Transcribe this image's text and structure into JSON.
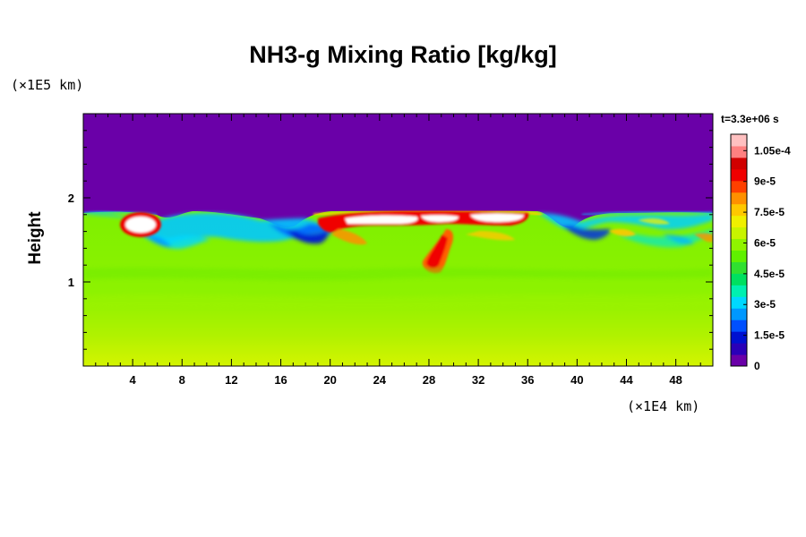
{
  "chart_data": {
    "type": "heatmap",
    "title": "NH3-g Mixing Ratio [kg/kg]",
    "ylabel": "Height",
    "y_unit": "(×1E5 km)",
    "x_unit": "(×1E4 km)",
    "time_label": "t=3.3e+06 s",
    "xlim": [
      0,
      51
    ],
    "ylim": [
      0,
      3
    ],
    "x_ticks": [
      "4",
      "8",
      "12",
      "16",
      "20",
      "24",
      "28",
      "32",
      "36",
      "40",
      "44",
      "48"
    ],
    "y_ticks": [
      "1",
      "2"
    ],
    "colorbar": {
      "min": 0,
      "max": 0.000113,
      "labels": [
        "0",
        "1.5e-5",
        "3e-5",
        "4.5e-5",
        "6e-5",
        "7.5e-5",
        "9e-5",
        "1.05e-4"
      ],
      "label_values": [
        0,
        1.5e-05,
        3e-05,
        4.5e-05,
        6e-05,
        7.5e-05,
        9e-05,
        0.000105
      ],
      "colors": [
        "#6a00a8",
        "#2a00b8",
        "#0010d0",
        "#0050ff",
        "#0098ff",
        "#00d8ff",
        "#00f0b0",
        "#00e060",
        "#30e030",
        "#60f000",
        "#90f400",
        "#c8f400",
        "#f0f000",
        "#ffc800",
        "#ff9000",
        "#ff4000",
        "#f00000",
        "#d00000",
        "#ff8080",
        "#ffc0c0"
      ]
    },
    "field_summary": {
      "surface_value": 7.5e-05,
      "lower_layer_value": 6.5e-05,
      "upper_layer_value": 0,
      "cloud_top_height": 1.82,
      "high_value_plumes_x": [
        5,
        20,
        24,
        28,
        31,
        35,
        44
      ]
    }
  }
}
